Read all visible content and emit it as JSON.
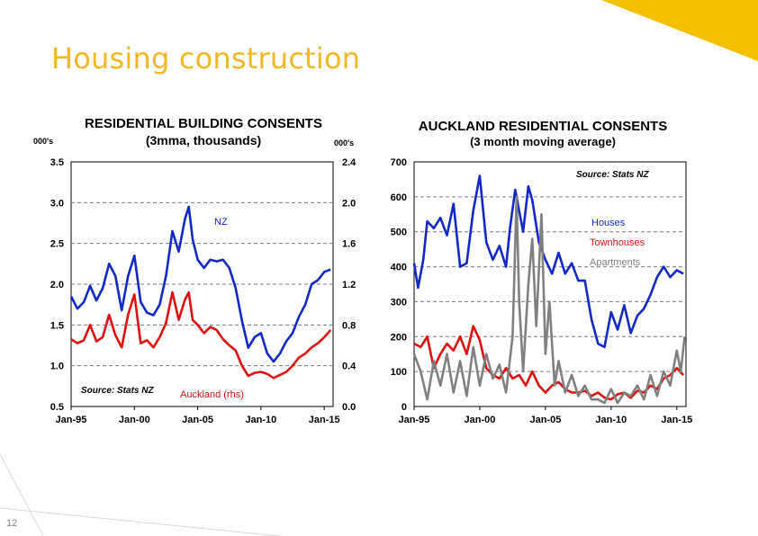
{
  "slide": {
    "title": "Housing construction",
    "page_number": "12",
    "accent_color": "#F5C000"
  },
  "chart_data": [
    {
      "type": "line",
      "title": "RESIDENTIAL  BUILDING CONSENTS",
      "subtitle": "(3mma, thousands)",
      "y_unit_left": "000's",
      "y_unit_right": "000's",
      "source": "Source:  Stats NZ",
      "grid": true,
      "x_range": [
        "1995-01",
        "2015-08"
      ],
      "x_ticks": [
        "Jan-95",
        "Jan-00",
        "Jan-05",
        "Jan-10",
        "Jan-15"
      ],
      "x_tick_values": [
        1995,
        2000,
        2005,
        2010,
        2015
      ],
      "ylim_left": [
        0.5,
        3.5
      ],
      "y_ticks_left": [
        "3.5",
        "3.0",
        "2.5",
        "2.0",
        "1.5",
        "1.0",
        "0.5"
      ],
      "y_tick_values_left": [
        3.5,
        3.0,
        2.5,
        2.0,
        1.5,
        1.0,
        0.5
      ],
      "ylim_right": [
        0.0,
        2.4
      ],
      "y_ticks_right": [
        "2.4",
        "2.0",
        "1.6",
        "1.2",
        "0.8",
        "0.4",
        "0.0"
      ],
      "y_tick_values_right": [
        2.4,
        2.0,
        1.6,
        1.2,
        0.8,
        0.4,
        0.0
      ],
      "series": [
        {
          "name": "NZ",
          "axis": "left",
          "color": "#1428C8",
          "points": [
            [
              1995.0,
              1.85
            ],
            [
              1995.5,
              1.7
            ],
            [
              1996.0,
              1.78
            ],
            [
              1996.5,
              1.98
            ],
            [
              1997.0,
              1.8
            ],
            [
              1997.5,
              1.95
            ],
            [
              1998.0,
              2.25
            ],
            [
              1998.5,
              2.1
            ],
            [
              1999.0,
              1.68
            ],
            [
              1999.5,
              2.1
            ],
            [
              2000.0,
              2.35
            ],
            [
              2000.5,
              1.78
            ],
            [
              2001.0,
              1.65
            ],
            [
              2001.5,
              1.62
            ],
            [
              2002.0,
              1.75
            ],
            [
              2002.5,
              2.1
            ],
            [
              2003.0,
              2.65
            ],
            [
              2003.5,
              2.4
            ],
            [
              2004.0,
              2.8
            ],
            [
              2004.3,
              2.95
            ],
            [
              2004.6,
              2.55
            ],
            [
              2005.0,
              2.3
            ],
            [
              2005.5,
              2.2
            ],
            [
              2006.0,
              2.3
            ],
            [
              2006.5,
              2.28
            ],
            [
              2007.0,
              2.3
            ],
            [
              2007.5,
              2.2
            ],
            [
              2008.0,
              1.95
            ],
            [
              2008.5,
              1.55
            ],
            [
              2009.0,
              1.22
            ],
            [
              2009.5,
              1.35
            ],
            [
              2010.0,
              1.4
            ],
            [
              2010.5,
              1.15
            ],
            [
              2011.0,
              1.05
            ],
            [
              2011.5,
              1.15
            ],
            [
              2012.0,
              1.3
            ],
            [
              2012.5,
              1.4
            ],
            [
              2013.0,
              1.6
            ],
            [
              2013.5,
              1.75
            ],
            [
              2014.0,
              2.0
            ],
            [
              2014.5,
              2.05
            ],
            [
              2015.0,
              2.15
            ],
            [
              2015.5,
              2.18
            ]
          ]
        },
        {
          "name": "Auckland (rhs)",
          "axis": "right",
          "color": "#E01010",
          "points": [
            [
              1995.0,
              0.66
            ],
            [
              1995.5,
              0.62
            ],
            [
              1996.0,
              0.65
            ],
            [
              1996.5,
              0.8
            ],
            [
              1997.0,
              0.64
            ],
            [
              1997.5,
              0.68
            ],
            [
              1998.0,
              0.9
            ],
            [
              1998.5,
              0.7
            ],
            [
              1999.0,
              0.58
            ],
            [
              1999.5,
              0.9
            ],
            [
              2000.0,
              1.1
            ],
            [
              2000.5,
              0.62
            ],
            [
              2001.0,
              0.65
            ],
            [
              2001.5,
              0.58
            ],
            [
              2002.0,
              0.68
            ],
            [
              2002.5,
              0.82
            ],
            [
              2003.0,
              1.12
            ],
            [
              2003.5,
              0.85
            ],
            [
              2004.0,
              1.05
            ],
            [
              2004.3,
              1.12
            ],
            [
              2004.6,
              0.85
            ],
            [
              2005.0,
              0.8
            ],
            [
              2005.5,
              0.72
            ],
            [
              2006.0,
              0.78
            ],
            [
              2006.5,
              0.75
            ],
            [
              2007.0,
              0.66
            ],
            [
              2007.5,
              0.6
            ],
            [
              2008.0,
              0.55
            ],
            [
              2008.5,
              0.4
            ],
            [
              2009.0,
              0.3
            ],
            [
              2009.5,
              0.33
            ],
            [
              2010.0,
              0.34
            ],
            [
              2010.5,
              0.32
            ],
            [
              2011.0,
              0.28
            ],
            [
              2011.5,
              0.31
            ],
            [
              2012.0,
              0.34
            ],
            [
              2012.5,
              0.4
            ],
            [
              2013.0,
              0.48
            ],
            [
              2013.5,
              0.52
            ],
            [
              2014.0,
              0.58
            ],
            [
              2014.5,
              0.62
            ],
            [
              2015.0,
              0.68
            ],
            [
              2015.5,
              0.75
            ]
          ]
        }
      ],
      "labels": {
        "nz": "NZ",
        "auckland": "Auckland (rhs)"
      }
    },
    {
      "type": "line",
      "title": "AUCKLAND RESIDENTIAL CONSENTS",
      "subtitle": "(3 month moving average)",
      "source": "Source:  Stats NZ",
      "grid": true,
      "x_range": [
        "1995-01",
        "2015-08"
      ],
      "x_ticks": [
        "Jan-95",
        "Jan-00",
        "Jan-05",
        "Jan-10",
        "Jan-15"
      ],
      "x_tick_values": [
        1995,
        2000,
        2005,
        2010,
        2015
      ],
      "ylim": [
        0,
        700
      ],
      "y_ticks": [
        "700",
        "600",
        "500",
        "400",
        "300",
        "200",
        "100",
        "0"
      ],
      "y_tick_values": [
        700,
        600,
        500,
        400,
        300,
        200,
        100,
        0
      ],
      "series": [
        {
          "name": "Houses",
          "color": "#1428C8",
          "points": [
            [
              1995.0,
              410
            ],
            [
              1995.3,
              340
            ],
            [
              1995.7,
              420
            ],
            [
              1996.0,
              530
            ],
            [
              1996.5,
              510
            ],
            [
              1997.0,
              540
            ],
            [
              1997.5,
              490
            ],
            [
              1998.0,
              580
            ],
            [
              1998.5,
              400
            ],
            [
              1999.0,
              410
            ],
            [
              1999.5,
              560
            ],
            [
              2000.0,
              660
            ],
            [
              2000.5,
              470
            ],
            [
              2001.0,
              420
            ],
            [
              2001.5,
              460
            ],
            [
              2002.0,
              400
            ],
            [
              2002.3,
              510
            ],
            [
              2002.7,
              620
            ],
            [
              2003.0,
              560
            ],
            [
              2003.3,
              500
            ],
            [
              2003.7,
              630
            ],
            [
              2004.0,
              590
            ],
            [
              2004.5,
              470
            ],
            [
              2005.0,
              420
            ],
            [
              2005.5,
              380
            ],
            [
              2006.0,
              440
            ],
            [
              2006.5,
              380
            ],
            [
              2007.0,
              410
            ],
            [
              2007.5,
              360
            ],
            [
              2008.0,
              360
            ],
            [
              2008.5,
              250
            ],
            [
              2009.0,
              180
            ],
            [
              2009.5,
              170
            ],
            [
              2010.0,
              270
            ],
            [
              2010.5,
              220
            ],
            [
              2011.0,
              290
            ],
            [
              2011.5,
              210
            ],
            [
              2012.0,
              260
            ],
            [
              2012.5,
              280
            ],
            [
              2013.0,
              320
            ],
            [
              2013.5,
              370
            ],
            [
              2014.0,
              400
            ],
            [
              2014.5,
              370
            ],
            [
              2015.0,
              390
            ],
            [
              2015.5,
              380
            ]
          ]
        },
        {
          "name": "Townhouses",
          "color": "#E01010",
          "points": [
            [
              1995.0,
              180
            ],
            [
              1995.5,
              170
            ],
            [
              1996.0,
              200
            ],
            [
              1996.5,
              110
            ],
            [
              1997.0,
              150
            ],
            [
              1997.5,
              180
            ],
            [
              1998.0,
              160
            ],
            [
              1998.5,
              200
            ],
            [
              1999.0,
              150
            ],
            [
              1999.5,
              230
            ],
            [
              2000.0,
              190
            ],
            [
              2000.5,
              110
            ],
            [
              2001.0,
              90
            ],
            [
              2001.5,
              80
            ],
            [
              2002.0,
              110
            ],
            [
              2002.5,
              80
            ],
            [
              2003.0,
              90
            ],
            [
              2003.5,
              60
            ],
            [
              2004.0,
              100
            ],
            [
              2004.5,
              60
            ],
            [
              2005.0,
              40
            ],
            [
              2005.5,
              60
            ],
            [
              2006.0,
              70
            ],
            [
              2006.5,
              50
            ],
            [
              2007.0,
              40
            ],
            [
              2007.5,
              40
            ],
            [
              2008.0,
              45
            ],
            [
              2008.5,
              30
            ],
            [
              2009.0,
              40
            ],
            [
              2009.5,
              25
            ],
            [
              2010.0,
              20
            ],
            [
              2010.5,
              35
            ],
            [
              2011.0,
              40
            ],
            [
              2011.5,
              25
            ],
            [
              2012.0,
              45
            ],
            [
              2012.5,
              40
            ],
            [
              2013.0,
              60
            ],
            [
              2013.5,
              50
            ],
            [
              2014.0,
              80
            ],
            [
              2014.5,
              90
            ],
            [
              2015.0,
              110
            ],
            [
              2015.5,
              90
            ]
          ]
        },
        {
          "name": "Apartments",
          "color": "#808080",
          "points": [
            [
              1995.0,
              150
            ],
            [
              1995.5,
              100
            ],
            [
              1996.0,
              20
            ],
            [
              1996.5,
              130
            ],
            [
              1997.0,
              60
            ],
            [
              1997.5,
              150
            ],
            [
              1998.0,
              40
            ],
            [
              1998.5,
              130
            ],
            [
              1999.0,
              30
            ],
            [
              1999.5,
              170
            ],
            [
              2000.0,
              60
            ],
            [
              2000.5,
              150
            ],
            [
              2001.0,
              80
            ],
            [
              2001.5,
              120
            ],
            [
              2002.0,
              40
            ],
            [
              2002.5,
              200
            ],
            [
              2002.8,
              600
            ],
            [
              2003.0,
              300
            ],
            [
              2003.3,
              100
            ],
            [
              2003.7,
              350
            ],
            [
              2004.0,
              480
            ],
            [
              2004.3,
              230
            ],
            [
              2004.7,
              550
            ],
            [
              2005.0,
              150
            ],
            [
              2005.3,
              300
            ],
            [
              2005.7,
              60
            ],
            [
              2006.0,
              130
            ],
            [
              2006.5,
              40
            ],
            [
              2007.0,
              90
            ],
            [
              2007.5,
              30
            ],
            [
              2008.0,
              60
            ],
            [
              2008.5,
              20
            ],
            [
              2009.0,
              20
            ],
            [
              2009.5,
              10
            ],
            [
              2010.0,
              50
            ],
            [
              2010.5,
              10
            ],
            [
              2011.0,
              40
            ],
            [
              2011.5,
              30
            ],
            [
              2012.0,
              60
            ],
            [
              2012.5,
              20
            ],
            [
              2013.0,
              90
            ],
            [
              2013.5,
              30
            ],
            [
              2014.0,
              100
            ],
            [
              2014.5,
              60
            ],
            [
              2015.0,
              160
            ],
            [
              2015.3,
              100
            ],
            [
              2015.6,
              200
            ]
          ]
        }
      ]
    }
  ]
}
